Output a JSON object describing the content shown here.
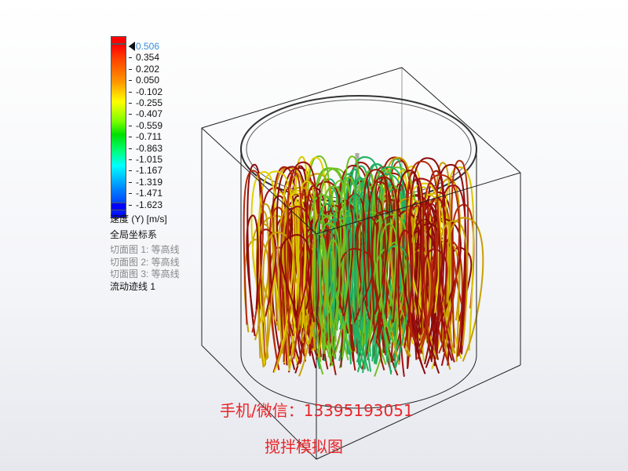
{
  "legend": {
    "ticks": [
      "0.506",
      "0.354",
      "0.202",
      "0.050",
      "-0.102",
      "-0.255",
      "-0.407",
      "-0.559",
      "-0.711",
      "-0.863",
      "-1.015",
      "-1.167",
      "-1.319",
      "-1.471",
      "-1.623"
    ],
    "quantity": "速度 (Y) [m/s]",
    "coordinate_system": "全局坐标系",
    "cut_plots": [
      "切面图 1: 等高线",
      "切面图 2: 等高线",
      "切面图 3: 等高线"
    ],
    "flow_trajectory": "流动迹线 1",
    "max_color": "#ff0000",
    "min_color": "#0000ff"
  },
  "overlay": {
    "contact": "手机/微信：13395193051",
    "caption": "搅拌模拟图",
    "color": "#e8262a"
  }
}
